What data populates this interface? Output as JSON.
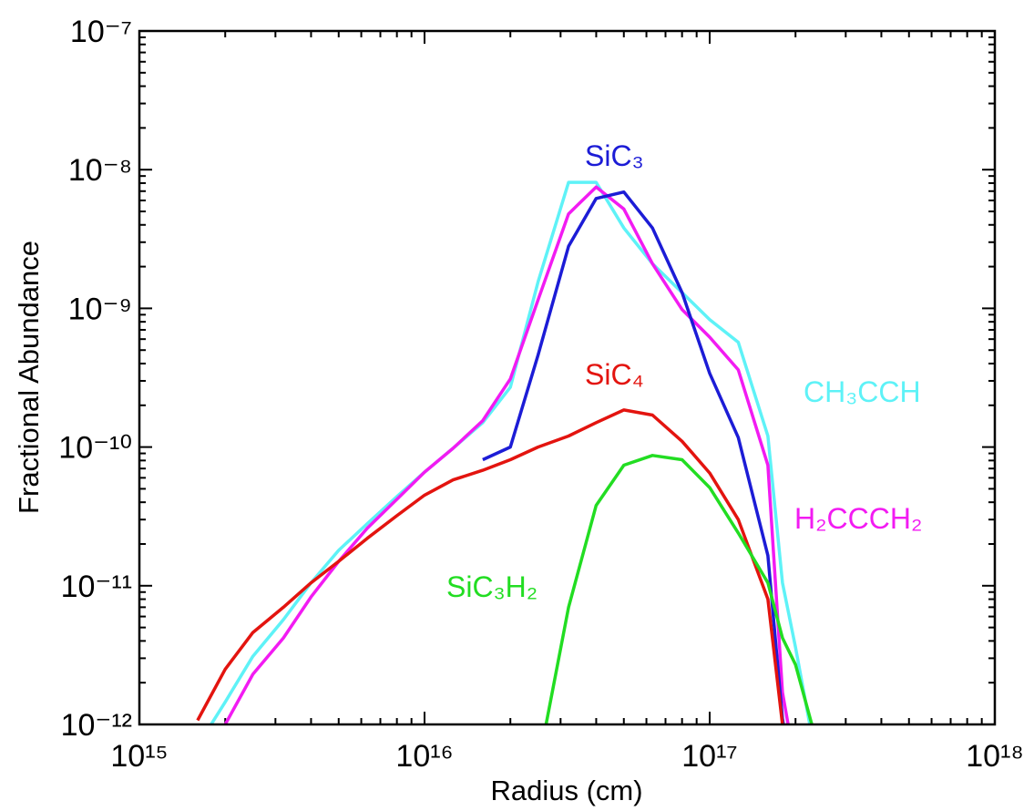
{
  "chart_data": {
    "type": "line",
    "x_label": "Radius (cm)",
    "y_label": "Fractional Abundance",
    "log_x": true,
    "log_y": true,
    "xlim": [
      1000000000000000.0,
      1e+18
    ],
    "xticks": [
      {
        "value": 1000000000000000.0,
        "label": "10¹⁵"
      },
      {
        "value": 1e+16,
        "label": "10¹⁶"
      },
      {
        "value": 1e+17,
        "label": "10¹⁷"
      },
      {
        "value": 1e+18,
        "label": "10¹⁸"
      }
    ],
    "ylim": [
      1e-12,
      1e-07
    ],
    "yticks": [
      {
        "value": 1e-12,
        "label": "10⁻¹²"
      },
      {
        "value": 1e-11,
        "label": "10⁻¹¹"
      },
      {
        "value": 1e-10,
        "label": "10⁻¹⁰"
      },
      {
        "value": 1e-09,
        "label": "10⁻⁹"
      },
      {
        "value": 1e-08,
        "label": "10⁻⁸"
      },
      {
        "value": 1e-07,
        "label": "10⁻⁷"
      }
    ],
    "x": [
      1600000000000000.0,
      2000000000000000.0,
      2500000000000000.0,
      3200000000000000.0,
      4000000000000000.0,
      5000000000000000.0,
      6300000000000000.0,
      8000000000000000.0,
      1e+16,
      1.26e+16,
      1.6e+16,
      2e+16,
      2.5e+16,
      3.2e+16,
      4e+16,
      5e+16,
      6.3e+16,
      8e+16,
      1e+17,
      1.26e+17,
      1.6e+17,
      1.8e+17,
      2e+17,
      2.5e+17
    ],
    "series": [
      {
        "name": "CH₃CCH",
        "color": "#5ef2f7",
        "values": [
          7e-13,
          1.45e-12,
          3.1e-12,
          5.7e-12,
          1.05e-11,
          1.8e-11,
          2.8e-11,
          4.4e-11,
          6.6e-11,
          9.8e-11,
          1.5e-10,
          2.7e-10,
          1.55e-09,
          8.1e-09,
          8.1e-09,
          3.8e-09,
          2.1e-09,
          1.3e-09,
          8.3e-10,
          5.7e-10,
          1.2e-10,
          1.05e-11,
          3.6e-12,
          3e-13
        ]
      },
      {
        "name": "H₂CCCH₂",
        "color": "#f21bf2",
        "values": [
          5e-13,
          1e-12,
          2.3e-12,
          4.2e-12,
          8.3e-12,
          1.5e-11,
          2.6e-11,
          4.2e-11,
          6.6e-11,
          9.8e-11,
          1.55e-10,
          3.1e-10,
          1.15e-09,
          4.8e-09,
          7.5e-09,
          5.2e-09,
          2.1e-09,
          9.8e-10,
          6.2e-10,
          3.6e-10,
          7.4e-11,
          1.7e-12,
          5e-13,
          null
        ]
      },
      {
        "name": "SiC₃",
        "color": "#1c1cd6",
        "values": [
          null,
          null,
          null,
          null,
          null,
          null,
          null,
          null,
          null,
          null,
          8.1e-11,
          1e-10,
          4.6e-10,
          2.8e-09,
          6.2e-09,
          6.9e-09,
          3.8e-09,
          1.3e-09,
          3.4e-10,
          1.17e-10,
          1.65e-11,
          1.1e-12,
          3e-13,
          null
        ]
      },
      {
        "name": "SiC₄",
        "color": "#e3140f",
        "values": [
          1.07e-12,
          2.5e-12,
          4.6e-12,
          7e-12,
          1.05e-11,
          1.5e-11,
          2.2e-11,
          3.2e-11,
          4.5e-11,
          5.8e-11,
          6.8e-11,
          8.1e-11,
          1e-10,
          1.2e-10,
          1.5e-10,
          1.85e-10,
          1.7e-10,
          1.1e-10,
          6.5e-11,
          3e-11,
          8e-12,
          1e-12,
          4e-13,
          null
        ]
      },
      {
        "name": "SiC₃H₂",
        "color": "#22dd22",
        "values": [
          null,
          null,
          null,
          null,
          null,
          null,
          null,
          null,
          null,
          null,
          null,
          null,
          5e-13,
          7e-12,
          3.8e-11,
          7.4e-11,
          8.7e-11,
          8.1e-11,
          5.1e-11,
          2.4e-11,
          1.05e-11,
          4.2e-12,
          2.7e-12,
          5e-13
        ]
      }
    ]
  }
}
